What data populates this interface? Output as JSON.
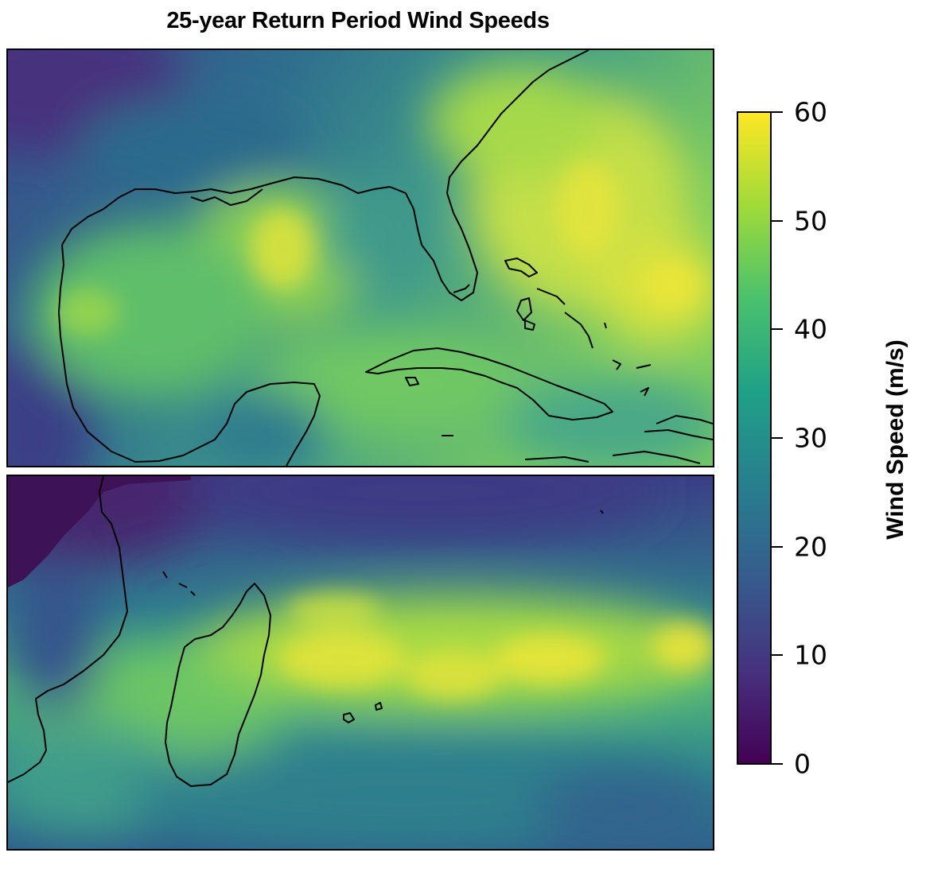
{
  "title": "25-year Return Period Wind Speeds",
  "colorbar": {
    "label": "Wind Speed (m/s)",
    "min": 0,
    "max": 60,
    "ticks": [
      "0",
      "10",
      "20",
      "30",
      "40",
      "50",
      "60"
    ],
    "colormap": "viridis",
    "stops": [
      "#440154",
      "#46327e",
      "#365c8d",
      "#277f8e",
      "#1fa187",
      "#4ac16d",
      "#a0da39",
      "#fde725"
    ]
  },
  "panels": [
    {
      "id": "top",
      "region": "Gulf of Mexico and western North Atlantic"
    },
    {
      "id": "bottom",
      "region": "Southwest Indian Ocean (Madagascar)"
    }
  ]
}
